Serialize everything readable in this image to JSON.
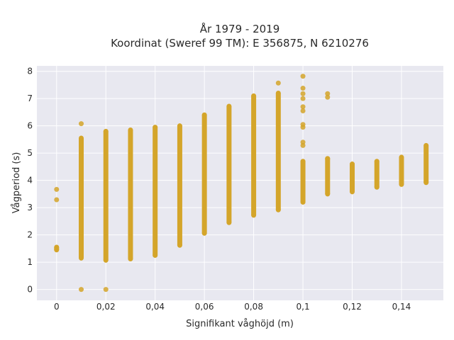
{
  "chart_data": {
    "type": "scatter",
    "title": [
      "År 1979 - 2019",
      "Koordinat (Sweref 99 TM): E 356875, N 6210276"
    ],
    "xlabel": "Signifikant våghöjd (m)",
    "ylabel": "Vågperiod (s)",
    "xlim": [
      -0.008,
      0.157
    ],
    "ylim": [
      -0.4,
      8.2
    ],
    "x_ticks": [
      0,
      0.02,
      0.04,
      0.06,
      0.08,
      0.1,
      0.12,
      0.14
    ],
    "x_tick_labels": [
      "0",
      "0,02",
      "0,04",
      "0,06",
      "0,08",
      "0,1",
      "0,12",
      "0,14"
    ],
    "y_ticks": [
      0,
      1,
      2,
      3,
      4,
      5,
      6,
      7,
      8
    ],
    "y_tick_labels": [
      "0",
      "1",
      "2",
      "3",
      "4",
      "5",
      "6",
      "7",
      "8"
    ],
    "grid": true,
    "marker_color": "#d4a52a",
    "plot_background": "#e8e8f0",
    "series": [
      {
        "x_values": [
          0.0,
          0.01,
          0.02,
          0.03,
          0.04,
          0.05,
          0.06,
          0.07,
          0.08,
          0.09,
          0.1,
          0.11,
          0.12,
          0.13,
          0.14,
          0.15
        ],
        "ranges": [
          [
            1.45,
            1.55
          ],
          [
            1.15,
            5.55
          ],
          [
            1.07,
            5.8
          ],
          [
            1.12,
            5.85
          ],
          [
            1.25,
            5.95
          ],
          [
            1.62,
            6.0
          ],
          [
            2.06,
            6.4
          ],
          [
            2.45,
            6.72
          ],
          [
            2.72,
            7.1
          ],
          [
            2.92,
            7.2
          ],
          [
            3.2,
            4.7
          ],
          [
            3.5,
            4.8
          ],
          [
            3.58,
            4.6
          ],
          [
            3.75,
            4.7
          ],
          [
            3.85,
            4.85
          ],
          [
            3.92,
            5.28
          ]
        ],
        "isolated_points": [
          {
            "x": 0.0,
            "y": 3.67
          },
          {
            "x": 0.0,
            "y": 3.29
          },
          {
            "x": 0.01,
            "y": 6.08
          },
          {
            "x": 0.01,
            "y": 0.0
          },
          {
            "x": 0.02,
            "y": 0.0
          },
          {
            "x": 0.09,
            "y": 7.57
          },
          {
            "x": 0.1,
            "y": 7.82
          },
          {
            "x": 0.1,
            "y": 7.38
          },
          {
            "x": 0.1,
            "y": 7.18
          },
          {
            "x": 0.1,
            "y": 7.0
          },
          {
            "x": 0.1,
            "y": 6.7
          },
          {
            "x": 0.1,
            "y": 6.55
          },
          {
            "x": 0.1,
            "y": 6.05
          },
          {
            "x": 0.1,
            "y": 5.95
          },
          {
            "x": 0.1,
            "y": 5.4
          },
          {
            "x": 0.1,
            "y": 5.28
          },
          {
            "x": 0.11,
            "y": 7.18
          },
          {
            "x": 0.11,
            "y": 7.05
          },
          {
            "x": 0.11,
            "y": 4.8
          }
        ]
      }
    ]
  }
}
